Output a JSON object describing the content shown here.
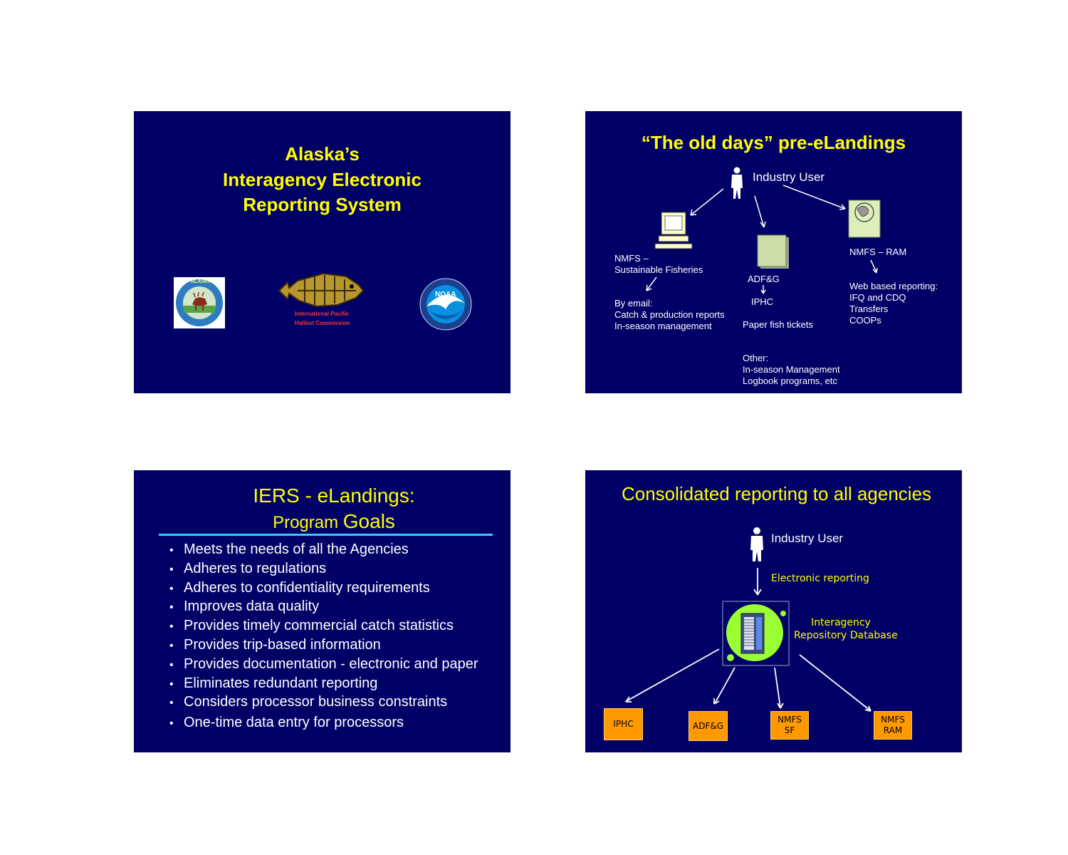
{
  "slide1": {
    "title_lines": [
      "Alaska’s",
      "Interagency Electronic",
      "Reporting System"
    ],
    "logos": {
      "adfg": {
        "icon": "alaska-dept-fish-game-seal-icon",
        "ring_text": "ALASKA",
        "bottom_text": "DEPARTMENT OF FISH AND GAME"
      },
      "iphc": {
        "icon": "iphc-halibut-logo-icon",
        "line1": "International Pacific",
        "line2": "Halibut Commission"
      },
      "noaa": {
        "icon": "noaa-logo-icon",
        "text": "NOAA"
      }
    }
  },
  "slide2": {
    "title": "“The old days” pre-eLandings",
    "industry_user": "Industry User",
    "nmfs_sf_1": "NMFS –",
    "nmfs_sf_2": "Sustainable Fisheries",
    "email_1": "By email:",
    "email_2": "Catch & production reports",
    "email_3": "In-season management",
    "adfg": "ADF&G",
    "iphc": "IPHC",
    "paper": "Paper fish tickets",
    "nmfs_ram": "NMFS – RAM",
    "web_1": "Web based reporting:",
    "web_2": "IFQ and CDQ",
    "web_3": "Transfers",
    "web_4": "COOPs",
    "other_1": "Other:",
    "other_2": "In-season Management",
    "other_3": "Logbook programs, etc"
  },
  "slide3": {
    "title_line1": "IERS - eLandings:",
    "title_line2a": "Program ",
    "title_line2b": "Goals",
    "bullets": [
      "Meets the needs of all the Agencies",
      "Adheres to regulations",
      "Adheres to confidentiality requirements",
      "Improves data quality",
      "Provides timely commercial catch statistics",
      "Provides trip-based information",
      "Provides documentation - electronic and paper",
      "Eliminates redundant reporting",
      "Considers processor business constraints",
      "One-time data entry for processors"
    ]
  },
  "slide4": {
    "title": "Consolidated reporting to all agencies",
    "industry_user": "Industry User",
    "electronic": "Electronic reporting",
    "db_1": "Interagency",
    "db_2": "Repository Database",
    "box_iphc": "IPHC",
    "box_adfg": "ADF&G",
    "box_sf_1": "NMFS",
    "box_sf_2": "SF",
    "box_ram_1": "NMFS",
    "box_ram_2": "RAM"
  },
  "colors": {
    "slide_bg": "#000066",
    "title_yellow": "#ffff00",
    "box_orange": "#ff9900",
    "rule_cyan": "#33ccff",
    "db_green": "#99ff33"
  }
}
